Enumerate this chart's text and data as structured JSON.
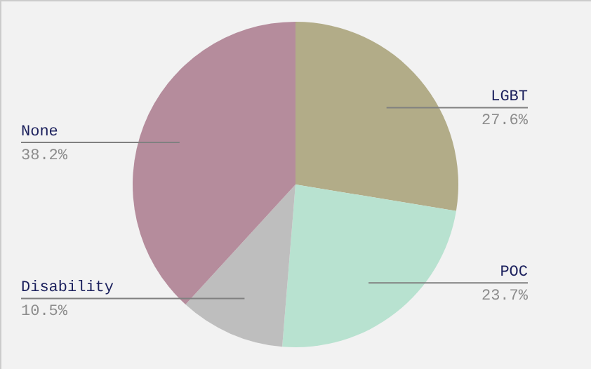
{
  "chart_data": {
    "type": "pie",
    "categories": [
      "LGBT",
      "POC",
      "Disability",
      "None"
    ],
    "values": [
      27.6,
      23.7,
      10.5,
      38.2
    ],
    "colors": [
      "#b2ac88",
      "#b8e2d0",
      "#bebebe",
      "#b58c9c"
    ],
    "value_labels": [
      "27.6%",
      "23.7%",
      "10.5%",
      "38.2%"
    ]
  }
}
